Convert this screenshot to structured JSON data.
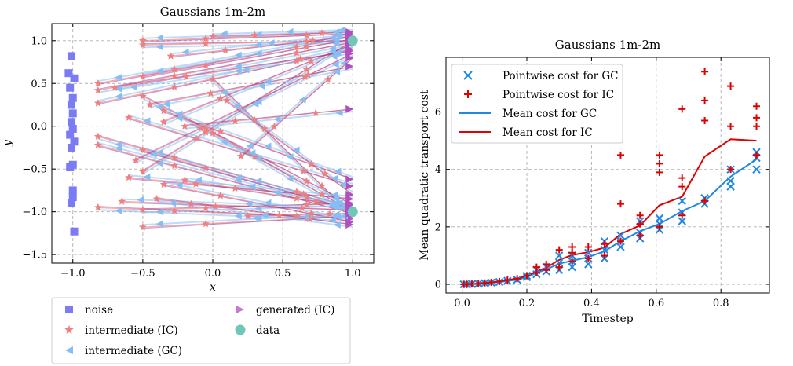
{
  "chart_data": [
    {
      "type": "scatter",
      "title": "Gaussians 1m-2m",
      "xlabel": "x",
      "ylabel": "y",
      "xlim": [
        -1.15,
        1.15
      ],
      "ylim": [
        -1.6,
        1.2
      ],
      "xticks": [
        -1.0,
        -0.5,
        0.0,
        0.5,
        1.0
      ],
      "xtick_labels": [
        "−1.0",
        "−0.5",
        "0.0",
        "0.5",
        "1.0"
      ],
      "yticks": [
        -1.5,
        -1.0,
        -0.5,
        0.0,
        0.5,
        1.0
      ],
      "ytick_labels": [
        "−1.5",
        "−1.0",
        "−0.5",
        "0.0",
        "0.5",
        "1.0"
      ],
      "grid": true,
      "legend_position": "below",
      "legend": [
        {
          "label": "noise",
          "marker": "square",
          "color": "#7b7bf5"
        },
        {
          "label": "intermediate (IC)",
          "marker": "star",
          "color": "#f08080"
        },
        {
          "label": "intermediate (GC)",
          "marker": "triangle-left",
          "color": "#87bdf5"
        },
        {
          "label": "generated (IC)",
          "marker": "triangle-right",
          "color": "#c27bc9"
        },
        {
          "label": "data",
          "marker": "circle",
          "color": "#70c6b9"
        }
      ],
      "series": [
        {
          "legend_index": 0,
          "points": [
            [
              -1.01,
              0.82
            ],
            [
              -1.03,
              0.62
            ],
            [
              -0.99,
              0.56
            ],
            [
              -1.02,
              0.45
            ],
            [
              -1.0,
              0.33
            ],
            [
              -1.01,
              0.25
            ],
            [
              -1.0,
              0.15
            ],
            [
              -1.01,
              0.05
            ],
            [
              -1.0,
              -0.03
            ],
            [
              -1.02,
              -0.1
            ],
            [
              -0.99,
              -0.18
            ],
            [
              -1.01,
              -0.25
            ],
            [
              -1.0,
              -0.45
            ],
            [
              -1.02,
              -0.48
            ],
            [
              -1.0,
              -0.75
            ],
            [
              -1.0,
              -0.83
            ],
            [
              -1.01,
              -0.9
            ],
            [
              -0.99,
              -1.23
            ]
          ]
        },
        {
          "legend_index": 4,
          "points": [
            [
              1.0,
              1.0
            ],
            [
              1.0,
              -1.0
            ]
          ]
        }
      ],
      "transport_paths": [
        {
          "from": [
            -0.82,
            0.5
          ],
          "to": [
            1.0,
            1.05
          ]
        },
        {
          "from": [
            -0.82,
            0.42
          ],
          "to": [
            1.0,
            0.98
          ]
        },
        {
          "from": [
            -0.82,
            0.27
          ],
          "to": [
            1.0,
            0.9
          ]
        },
        {
          "from": [
            -0.82,
            -0.12
          ],
          "to": [
            1.0,
            -0.95
          ]
        },
        {
          "from": [
            -0.82,
            -0.22
          ],
          "to": [
            1.0,
            -1.02
          ]
        },
        {
          "from": [
            -0.82,
            -0.95
          ],
          "to": [
            1.0,
            -1.08
          ]
        },
        {
          "from": [
            -0.5,
            1.0
          ],
          "to": [
            1.0,
            1.08
          ]
        },
        {
          "from": [
            -0.5,
            0.95
          ],
          "to": [
            1.0,
            1.0
          ]
        },
        {
          "from": [
            -0.5,
            0.58
          ],
          "to": [
            1.0,
            1.02
          ]
        },
        {
          "from": [
            -0.5,
            0.35
          ],
          "to": [
            1.0,
            -0.92
          ]
        },
        {
          "from": [
            -0.5,
            -0.28
          ],
          "to": [
            1.0,
            -0.98
          ]
        },
        {
          "from": [
            -0.5,
            -0.53
          ],
          "to": [
            1.0,
            1.0
          ]
        },
        {
          "from": [
            -0.5,
            -1.18
          ],
          "to": [
            1.0,
            -1.05
          ]
        },
        {
          "from": [
            -0.5,
            -0.98
          ],
          "to": [
            1.0,
            -0.9
          ]
        },
        {
          "from": [
            -0.35,
            0.18
          ],
          "to": [
            1.0,
            -0.62
          ]
        },
        {
          "from": [
            -0.35,
            0.05
          ],
          "to": [
            1.0,
            0.96
          ]
        },
        {
          "from": [
            -0.35,
            -0.68
          ],
          "to": [
            1.0,
            -1.12
          ]
        },
        {
          "from": [
            -0.2,
            0.0
          ],
          "to": [
            1.0,
            0.2
          ]
        },
        {
          "from": [
            -0.2,
            -0.63
          ],
          "to": [
            1.0,
            -0.95
          ]
        },
        {
          "from": [
            0.0,
            -0.08
          ],
          "to": [
            1.0,
            -1.0
          ]
        },
        {
          "from": [
            0.0,
            1.05
          ],
          "to": [
            1.0,
            1.1
          ]
        },
        {
          "from": [
            0.0,
            0.55
          ],
          "to": [
            1.0,
            -1.05
          ]
        },
        {
          "from": [
            -0.65,
            -0.88
          ],
          "to": [
            1.0,
            -0.98
          ]
        },
        {
          "from": [
            -0.7,
            0.45
          ],
          "to": [
            1.0,
            0.88
          ]
        },
        {
          "from": [
            -0.6,
            0.1
          ],
          "to": [
            1.0,
            -0.7
          ]
        },
        {
          "from": [
            -0.55,
            -0.4
          ],
          "to": [
            1.0,
            0.85
          ]
        },
        {
          "from": [
            0.2,
            -0.35
          ],
          "to": [
            1.0,
            0.8
          ]
        },
        {
          "from": [
            -0.4,
            -0.85
          ],
          "to": [
            1.0,
            -1.15
          ]
        },
        {
          "from": [
            -0.3,
            0.82
          ],
          "to": [
            1.0,
            1.05
          ]
        },
        {
          "from": [
            0.25,
            -1.05
          ],
          "to": [
            1.0,
            -1.02
          ]
        },
        {
          "from": [
            -0.6,
            -0.6
          ],
          "to": [
            1.0,
            -0.85
          ]
        },
        {
          "from": [
            -0.45,
            0.25
          ],
          "to": [
            1.0,
            0.7
          ]
        },
        {
          "from": [
            0.1,
            0.3
          ],
          "to": [
            1.0,
            -0.8
          ]
        }
      ]
    },
    {
      "type": "line",
      "title": "Gaussians 1m-2m",
      "xlabel": "Timestep",
      "ylabel": "Mean quadratic transport cost",
      "xlim": [
        -0.05,
        0.95
      ],
      "ylim": [
        -0.3,
        7.9
      ],
      "xticks": [
        0.0,
        0.2,
        0.4,
        0.6,
        0.8
      ],
      "xtick_labels": [
        "0.0",
        "0.2",
        "0.4",
        "0.6",
        "0.8"
      ],
      "yticks": [
        0,
        2,
        4,
        6
      ],
      "ytick_labels": [
        "0",
        "2",
        "4",
        "6"
      ],
      "grid": true,
      "legend_position": "top-left",
      "series": [
        {
          "name": "Pointwise cost for GC",
          "kind": "scatter",
          "marker": "x",
          "color": "#1e88e5",
          "points": [
            [
              0.005,
              0.0
            ],
            [
              0.015,
              0.0
            ],
            [
              0.03,
              0.01
            ],
            [
              0.05,
              0.02
            ],
            [
              0.07,
              0.04
            ],
            [
              0.09,
              0.06
            ],
            [
              0.115,
              0.08
            ],
            [
              0.14,
              0.12
            ],
            [
              0.17,
              0.16
            ],
            [
              0.2,
              0.25
            ],
            [
              0.2,
              0.3
            ],
            [
              0.23,
              0.35
            ],
            [
              0.23,
              0.5
            ],
            [
              0.26,
              0.45
            ],
            [
              0.26,
              0.6
            ],
            [
              0.3,
              0.5
            ],
            [
              0.3,
              0.75
            ],
            [
              0.3,
              1.0
            ],
            [
              0.34,
              0.6
            ],
            [
              0.34,
              0.8
            ],
            [
              0.34,
              1.0
            ],
            [
              0.39,
              0.7
            ],
            [
              0.39,
              0.9
            ],
            [
              0.39,
              1.1
            ],
            [
              0.44,
              0.9
            ],
            [
              0.44,
              1.2
            ],
            [
              0.44,
              1.5
            ],
            [
              0.49,
              1.3
            ],
            [
              0.49,
              1.5
            ],
            [
              0.49,
              1.7
            ],
            [
              0.55,
              1.6
            ],
            [
              0.55,
              1.8
            ],
            [
              0.55,
              2.2
            ],
            [
              0.61,
              1.9
            ],
            [
              0.61,
              2.1
            ],
            [
              0.61,
              2.3
            ],
            [
              0.68,
              2.2
            ],
            [
              0.68,
              2.5
            ],
            [
              0.68,
              2.9
            ],
            [
              0.75,
              2.8
            ],
            [
              0.75,
              3.0
            ],
            [
              0.83,
              3.4
            ],
            [
              0.83,
              3.6
            ],
            [
              0.83,
              4.0
            ],
            [
              0.91,
              4.0
            ],
            [
              0.91,
              4.4
            ],
            [
              0.91,
              4.6
            ]
          ]
        },
        {
          "name": "Pointwise cost for IC",
          "kind": "scatter",
          "marker": "plus",
          "color": "#e00000",
          "points": [
            [
              0.005,
              0.0
            ],
            [
              0.015,
              0.0
            ],
            [
              0.03,
              0.01
            ],
            [
              0.05,
              0.02
            ],
            [
              0.07,
              0.05
            ],
            [
              0.09,
              0.07
            ],
            [
              0.115,
              0.1
            ],
            [
              0.14,
              0.15
            ],
            [
              0.17,
              0.2
            ],
            [
              0.2,
              0.3
            ],
            [
              0.23,
              0.4
            ],
            [
              0.23,
              0.6
            ],
            [
              0.26,
              0.5
            ],
            [
              0.26,
              0.7
            ],
            [
              0.3,
              0.6
            ],
            [
              0.3,
              1.2
            ],
            [
              0.34,
              0.8
            ],
            [
              0.34,
              1.1
            ],
            [
              0.34,
              1.3
            ],
            [
              0.39,
              0.9
            ],
            [
              0.39,
              1.3
            ],
            [
              0.44,
              1.0
            ],
            [
              0.44,
              1.4
            ],
            [
              0.49,
              1.5
            ],
            [
              0.49,
              2.8
            ],
            [
              0.49,
              4.5
            ],
            [
              0.55,
              1.7
            ],
            [
              0.55,
              2.1
            ],
            [
              0.55,
              2.4
            ],
            [
              0.61,
              2.0
            ],
            [
              0.61,
              3.9
            ],
            [
              0.61,
              4.2
            ],
            [
              0.61,
              4.5
            ],
            [
              0.68,
              2.4
            ],
            [
              0.68,
              3.4
            ],
            [
              0.68,
              3.7
            ],
            [
              0.68,
              6.1
            ],
            [
              0.75,
              2.9
            ],
            [
              0.75,
              5.7
            ],
            [
              0.75,
              6.4
            ],
            [
              0.75,
              7.4
            ],
            [
              0.83,
              4.0
            ],
            [
              0.83,
              5.5
            ],
            [
              0.83,
              6.9
            ],
            [
              0.91,
              4.5
            ],
            [
              0.91,
              5.5
            ],
            [
              0.91,
              5.8
            ],
            [
              0.91,
              6.2
            ]
          ]
        },
        {
          "name": "Mean cost for GC",
          "kind": "line",
          "color": "#1e88e5",
          "points": [
            [
              0.005,
              0.0
            ],
            [
              0.03,
              0.01
            ],
            [
              0.05,
              0.02
            ],
            [
              0.07,
              0.04
            ],
            [
              0.09,
              0.06
            ],
            [
              0.115,
              0.08
            ],
            [
              0.14,
              0.12
            ],
            [
              0.17,
              0.16
            ],
            [
              0.2,
              0.25
            ],
            [
              0.23,
              0.4
            ],
            [
              0.26,
              0.52
            ],
            [
              0.3,
              0.72
            ],
            [
              0.34,
              0.82
            ],
            [
              0.39,
              0.95
            ],
            [
              0.44,
              1.15
            ],
            [
              0.49,
              1.5
            ],
            [
              0.55,
              1.85
            ],
            [
              0.61,
              2.1
            ],
            [
              0.68,
              2.55
            ],
            [
              0.75,
              2.9
            ],
            [
              0.83,
              3.75
            ],
            [
              0.91,
              4.35
            ]
          ]
        },
        {
          "name": "Mean cost for IC",
          "kind": "line",
          "color": "#e00000",
          "points": [
            [
              0.005,
              0.0
            ],
            [
              0.03,
              0.01
            ],
            [
              0.05,
              0.02
            ],
            [
              0.07,
              0.05
            ],
            [
              0.09,
              0.07
            ],
            [
              0.115,
              0.1
            ],
            [
              0.14,
              0.15
            ],
            [
              0.17,
              0.2
            ],
            [
              0.2,
              0.3
            ],
            [
              0.23,
              0.45
            ],
            [
              0.26,
              0.58
            ],
            [
              0.3,
              0.85
            ],
            [
              0.34,
              1.02
            ],
            [
              0.39,
              1.12
            ],
            [
              0.44,
              1.28
            ],
            [
              0.49,
              1.75
            ],
            [
              0.55,
              2.05
            ],
            [
              0.61,
              2.75
            ],
            [
              0.68,
              3.05
            ],
            [
              0.75,
              4.45
            ],
            [
              0.83,
              5.05
            ],
            [
              0.91,
              5.0
            ]
          ]
        }
      ]
    }
  ]
}
